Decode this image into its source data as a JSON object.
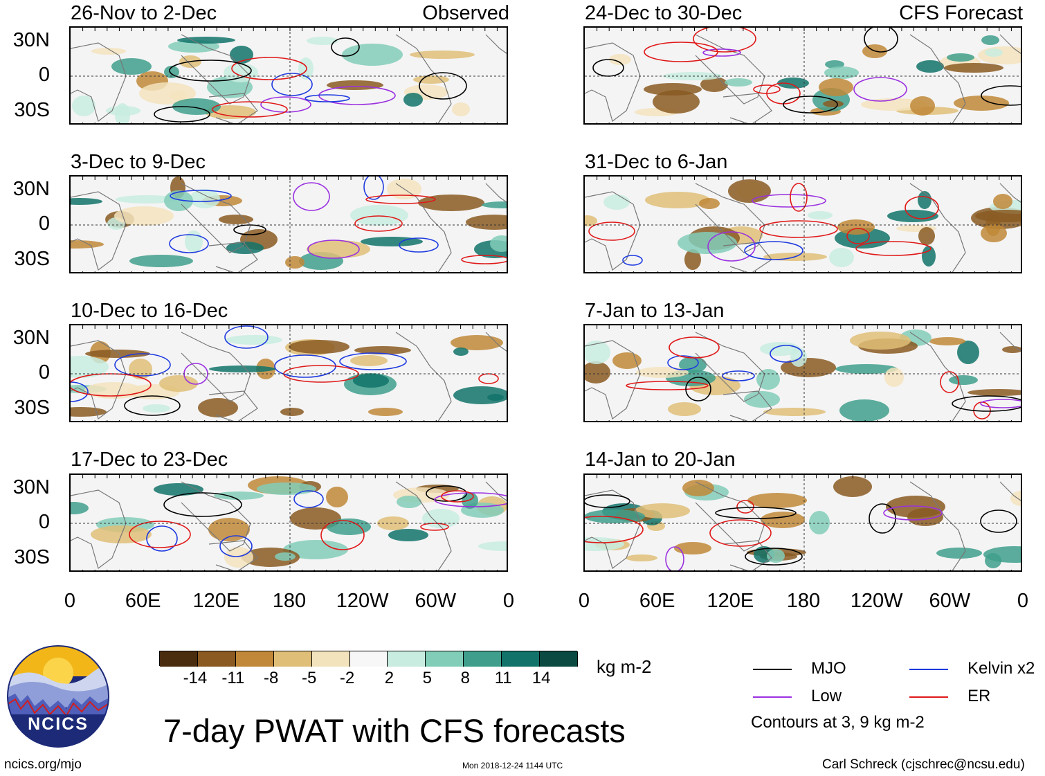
{
  "panels_left": [
    {
      "title": "26-Nov to 2-Dec",
      "tag": "Observed"
    },
    {
      "title": "3-Dec to 9-Dec",
      "tag": ""
    },
    {
      "title": "10-Dec to 16-Dec",
      "tag": ""
    },
    {
      "title": "17-Dec to 23-Dec",
      "tag": ""
    }
  ],
  "panels_right": [
    {
      "title": "24-Dec to 30-Dec",
      "tag": "CFS Forecast"
    },
    {
      "title": "31-Dec to 6-Jan",
      "tag": ""
    },
    {
      "title": "7-Jan to 13-Jan",
      "tag": ""
    },
    {
      "title": "14-Jan to 20-Jan",
      "tag": ""
    }
  ],
  "lat_labels": [
    "30N",
    "0",
    "30S"
  ],
  "lon_labels": [
    "0",
    "60E",
    "120E",
    "180",
    "120W",
    "60W",
    "0"
  ],
  "colorbar": {
    "unit": "kg m-2",
    "labels": [
      "-14",
      "-11",
      "-8",
      "-5",
      "-2",
      "2",
      "5",
      "8",
      "11",
      "14"
    ],
    "colors": [
      "#4a2c0e",
      "#8a5a22",
      "#c08838",
      "#dfbe78",
      "#f3e3bd",
      "#f7f7f7",
      "#c8ece0",
      "#82cdb8",
      "#3f9f8c",
      "#12736a",
      "#0a4a42"
    ]
  },
  "legend": {
    "items": [
      {
        "label": "MJO",
        "color": "#000000"
      },
      {
        "label": "Kelvin x2",
        "color": "#1e3ae0"
      },
      {
        "label": "Low",
        "color": "#9b30e0"
      },
      {
        "label": "ER",
        "color": "#e01818"
      }
    ],
    "note": "Contours at 3, 9 kg m-2"
  },
  "logo": {
    "text": "NCICS"
  },
  "main_title": "7-day PWAT with CFS forecasts",
  "footer": {
    "url": "ncics.org/mjo",
    "timestamp": "Mon 2018-12-24 1144 UTC",
    "author": "Carl Schreck (cjschrec@ncsu.edu)"
  }
}
